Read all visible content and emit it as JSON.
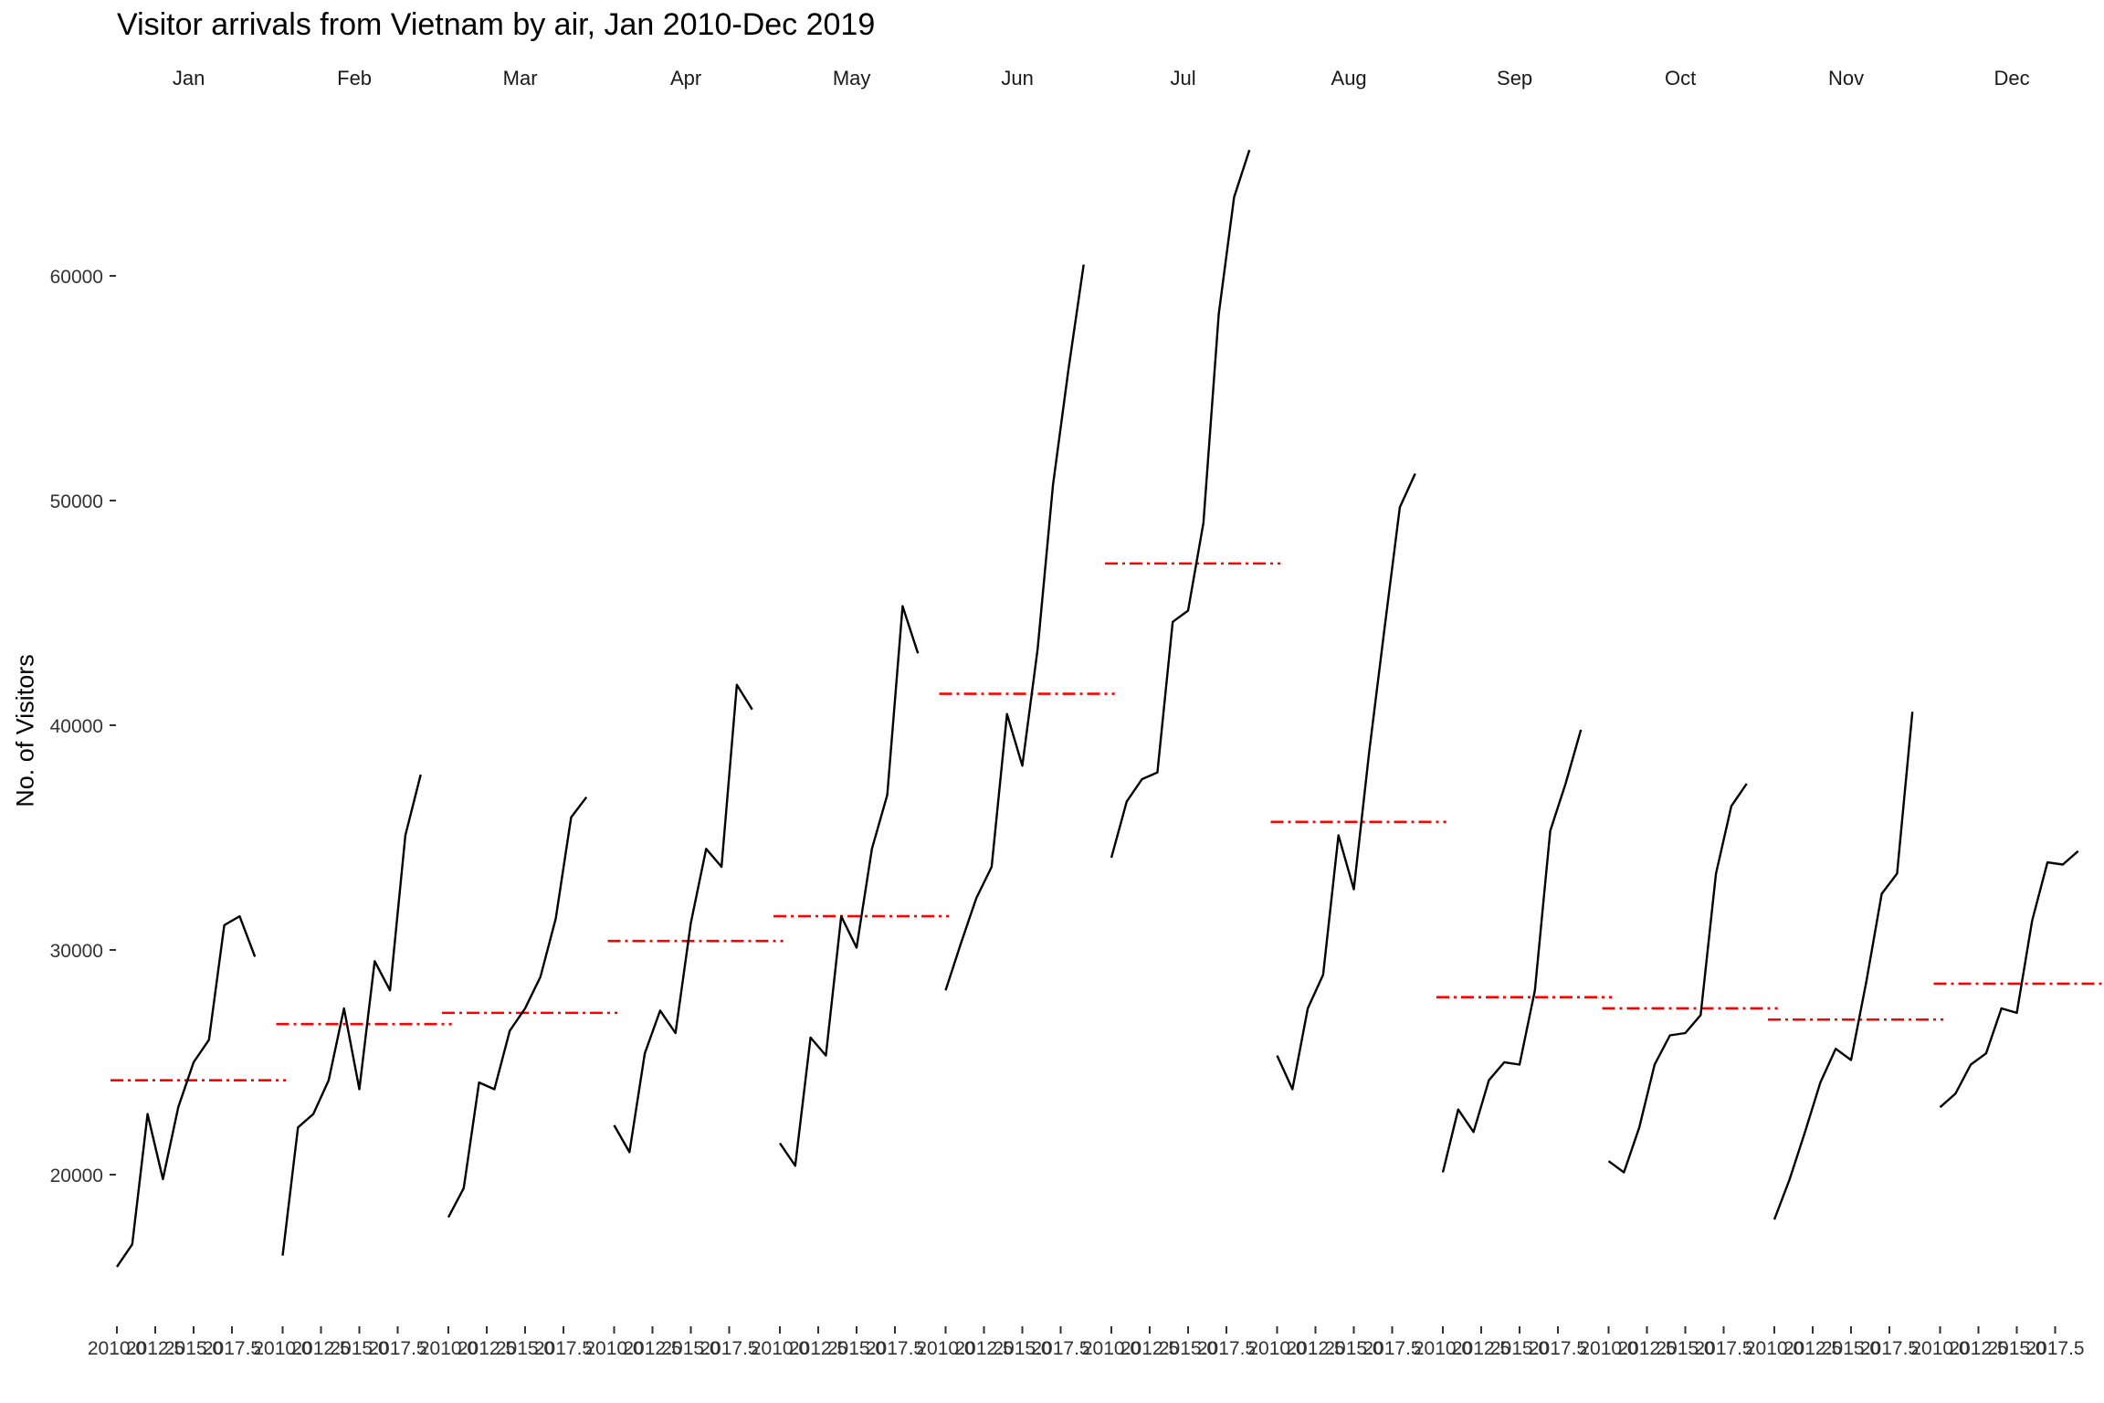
{
  "chart_data": {
    "type": "line",
    "title": "Visitor arrivals from Vietnam by air, Jan 2010-Dec 2019",
    "xlabel": "",
    "ylabel": "No. of Visitors",
    "ylim": [
      14000,
      67000
    ],
    "yticks": [
      20000,
      30000,
      40000,
      50000,
      60000
    ],
    "xticks": [
      "2010.0",
      "2012.5",
      "2015.0",
      "2017.5"
    ],
    "grid": false,
    "mean_line_color": "#ff0000",
    "series_color": "#000000",
    "years": [
      2010,
      2011,
      2012,
      2013,
      2014,
      2015,
      2016,
      2017,
      2018,
      2019
    ],
    "panels": [
      {
        "month": "Jan",
        "values": [
          15900,
          16900,
          22700,
          19800,
          23000,
          25000,
          26000,
          31100,
          31500,
          29700
        ],
        "mean": 24200
      },
      {
        "month": "Feb",
        "values": [
          16400,
          22100,
          22700,
          24200,
          27400,
          23800,
          29500,
          28200,
          35100,
          37800
        ],
        "mean": 26700
      },
      {
        "month": "Mar",
        "values": [
          18100,
          19400,
          24100,
          23800,
          26400,
          27400,
          28800,
          31400,
          35900,
          36800
        ],
        "mean": 27200
      },
      {
        "month": "Apr",
        "values": [
          22200,
          21000,
          25400,
          27300,
          26300,
          31200,
          34500,
          33700,
          41800,
          40700
        ],
        "mean": 30400
      },
      {
        "month": "May",
        "values": [
          21400,
          20400,
          26100,
          25300,
          31500,
          30100,
          34500,
          36900,
          45300,
          43200
        ],
        "mean": 31500
      },
      {
        "month": "Jun",
        "values": [
          28200,
          30300,
          32300,
          33700,
          40500,
          38200,
          43400,
          50700,
          55800,
          60500
        ],
        "mean": 41400
      },
      {
        "month": "Jul",
        "values": [
          34100,
          36600,
          37600,
          37900,
          44600,
          45100,
          49000,
          58300,
          63500,
          65600
        ],
        "mean": 47200
      },
      {
        "month": "Aug",
        "values": [
          25300,
          23800,
          27400,
          28900,
          35100,
          32700,
          38800,
          44300,
          49700,
          51200
        ],
        "mean": 35700
      },
      {
        "month": "Sep",
        "values": [
          20100,
          22900,
          21900,
          24200,
          25000,
          24900,
          28200,
          35300,
          37400,
          39800
        ],
        "mean": 27900
      },
      {
        "month": "Oct",
        "values": [
          20600,
          20100,
          22100,
          24900,
          26200,
          26300,
          27100,
          33400,
          36400,
          37400
        ],
        "mean": 27400
      },
      {
        "month": "Nov",
        "values": [
          18000,
          19800,
          21900,
          24100,
          25600,
          25100,
          28600,
          32500,
          33400,
          40600
        ],
        "mean": 26900
      },
      {
        "month": "Dec",
        "values": [
          23000,
          23600,
          24900,
          25400,
          27400,
          27200,
          31300,
          33900,
          33800,
          34400
        ],
        "mean": 28500
      }
    ]
  }
}
